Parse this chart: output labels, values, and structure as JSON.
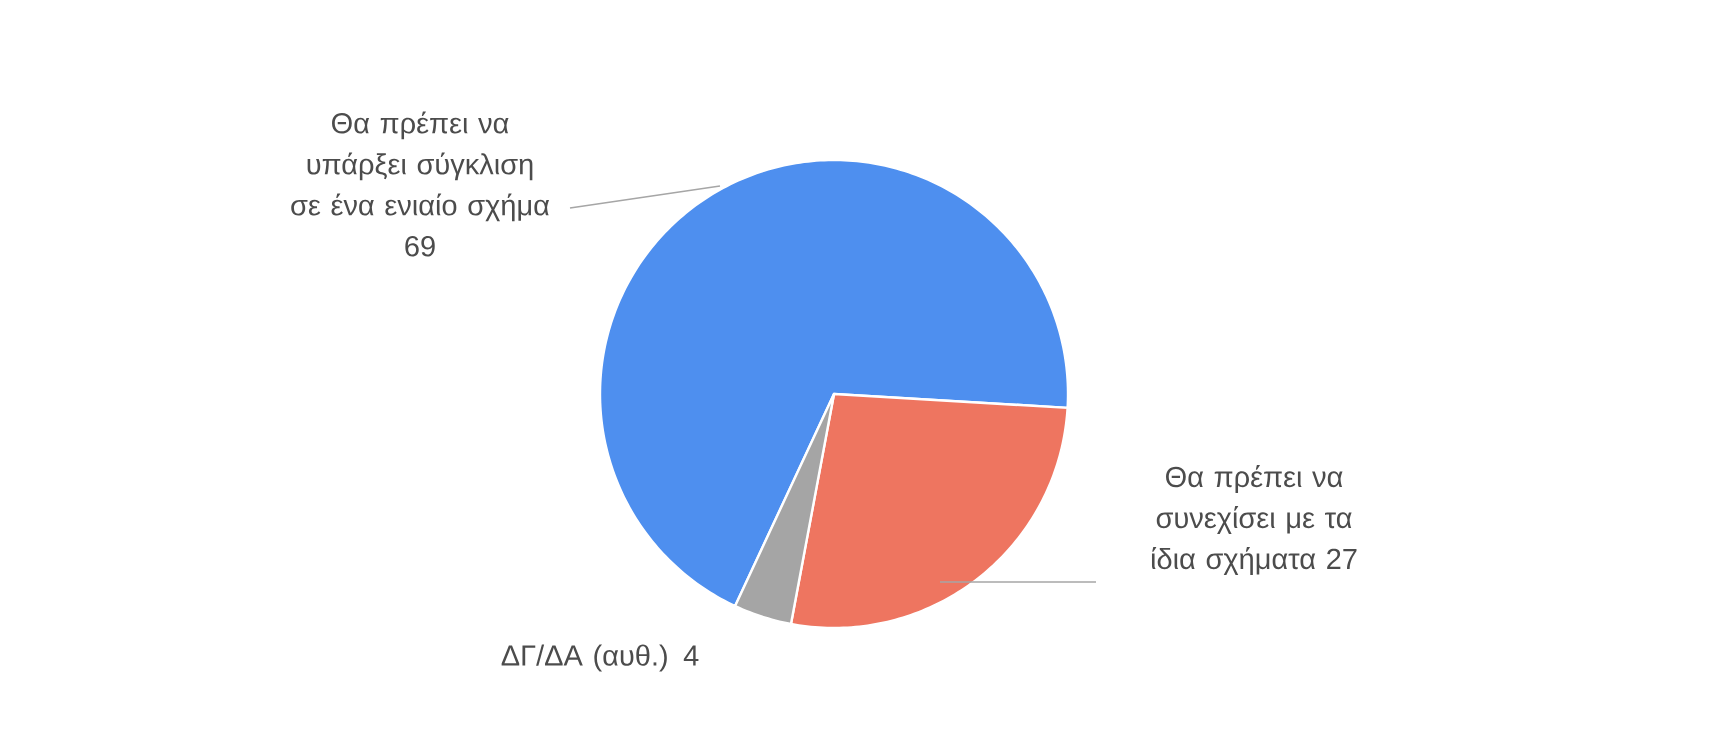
{
  "chart_data": {
    "type": "pie",
    "categories": [
      "Θα πρέπει να υπάρξει σύγκλιση σε ένα ενιαίο σχήμα",
      "Θα πρέπει να συνεχίσει με τα ίδια σχήματα",
      "ΔΓ/ΔΑ (αυθ.)"
    ],
    "values": [
      69,
      27,
      4
    ],
    "colors": [
      "#4e8fef",
      "#ee7560",
      "#a5a5a5"
    ],
    "data_labels": true
  }
}
